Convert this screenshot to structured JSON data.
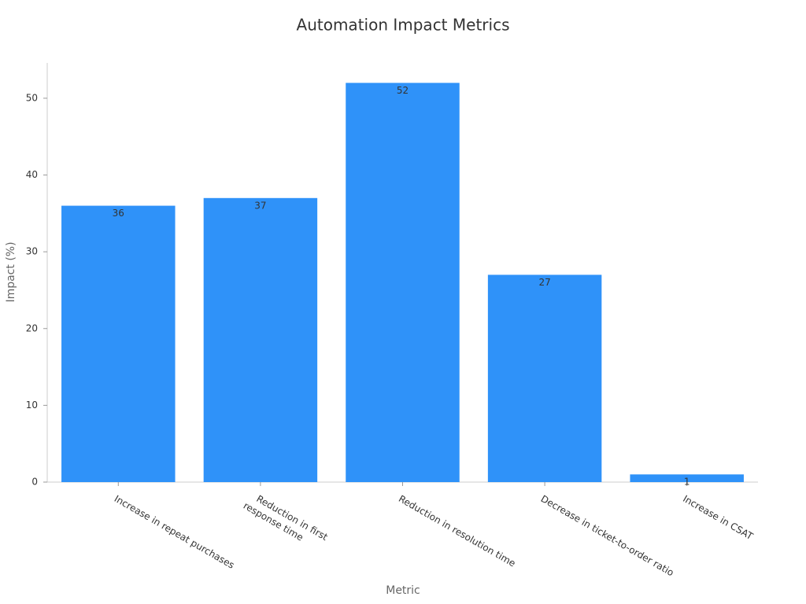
{
  "chart_data": {
    "type": "bar",
    "title": "Automation Impact Metrics",
    "x_label": "Metric",
    "y_label": "Impact (%)",
    "categories": [
      "Increase in repeat purchases",
      "Reduction in first\nresponse time",
      "Reduction in resolution time",
      "Decrease in ticket-to-order ratio",
      "Increase in CSAT"
    ],
    "values": [
      36,
      37,
      52,
      27,
      1
    ],
    "color": "#2f92f9",
    "ylim": [
      0,
      54.6
    ],
    "yticks": [
      0,
      10,
      20,
      30,
      40,
      50
    ],
    "grid": false
  }
}
